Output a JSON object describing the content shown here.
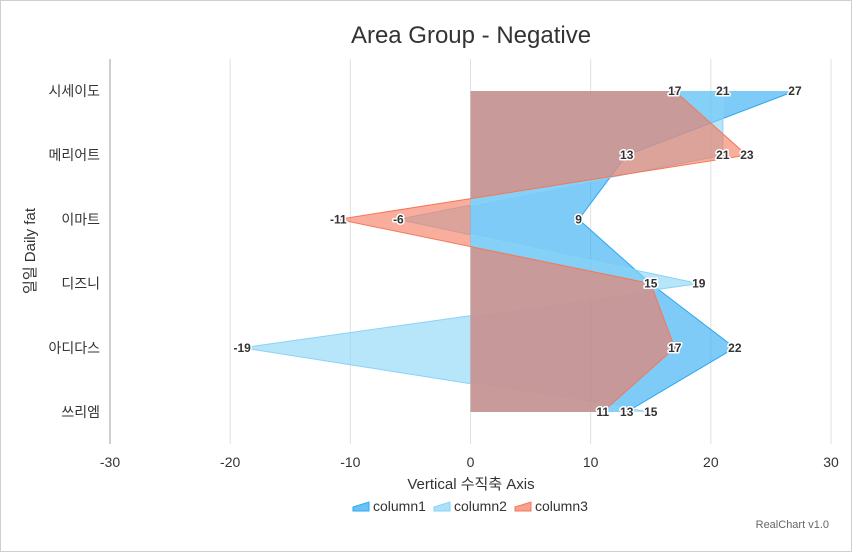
{
  "credit": "RealChart v1.0",
  "chart_data": {
    "type": "area",
    "orientation": "horizontal",
    "title": "Area Group - Negative",
    "xlabel": "Vertical 수직축 Axis",
    "ylabel": "일일 Daily fat",
    "categories": [
      "시세이도",
      "메리어트",
      "이마트",
      "디즈니",
      "아디다스",
      "쓰리엠"
    ],
    "xlim": [
      -30,
      30
    ],
    "xticks": [
      -30,
      -20,
      -10,
      0,
      10,
      20,
      30
    ],
    "grid": true,
    "legend_position": "bottom",
    "series": [
      {
        "name": "column1",
        "values": [
          27,
          13,
          9,
          15,
          22,
          13
        ],
        "color": "#2aa8f2"
      },
      {
        "name": "column2",
        "values": [
          21,
          21,
          -6,
          19,
          -19,
          15
        ],
        "color": "#87d4f7"
      },
      {
        "name": "column3",
        "values": [
          17,
          23,
          -11,
          15,
          17,
          11
        ],
        "color": "#f5775a"
      }
    ]
  }
}
